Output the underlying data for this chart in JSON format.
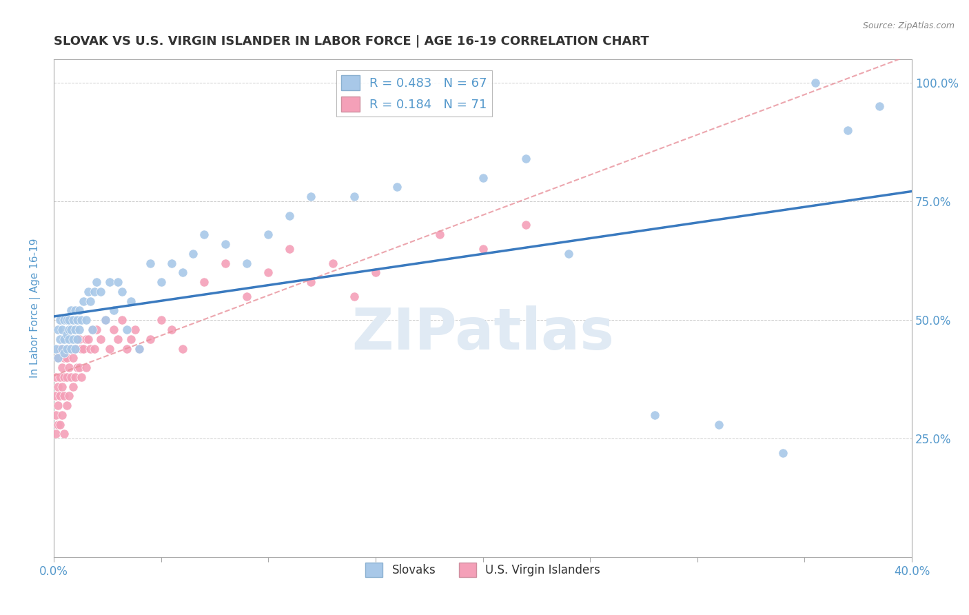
{
  "title": "SLOVAK VS U.S. VIRGIN ISLANDER IN LABOR FORCE | AGE 16-19 CORRELATION CHART",
  "source": "Source: ZipAtlas.com",
  "ylabel": "In Labor Force | Age 16-19",
  "xlim": [
    0.0,
    0.4
  ],
  "ylim": [
    0.0,
    1.05
  ],
  "x_ticks": [
    0.0,
    0.05,
    0.1,
    0.15,
    0.2,
    0.25,
    0.3,
    0.35,
    0.4
  ],
  "y_ticks": [
    0.0,
    0.25,
    0.5,
    0.75,
    1.0
  ],
  "legend_r1": "R = 0.483",
  "legend_n1": "N = 67",
  "legend_r2": "R = 0.184",
  "legend_n2": "N = 71",
  "blue_color": "#a8c8e8",
  "pink_color": "#f4a0b8",
  "line_blue": "#3a7abf",
  "line_pink": "#e8909a",
  "watermark": "ZIPatlas",
  "title_color": "#333333",
  "tick_label_color": "#5599cc",
  "slovaks_x": [
    0.001,
    0.002,
    0.002,
    0.003,
    0.003,
    0.004,
    0.004,
    0.005,
    0.005,
    0.005,
    0.006,
    0.006,
    0.006,
    0.007,
    0.007,
    0.007,
    0.008,
    0.008,
    0.008,
    0.009,
    0.009,
    0.01,
    0.01,
    0.01,
    0.011,
    0.011,
    0.012,
    0.012,
    0.013,
    0.014,
    0.015,
    0.016,
    0.017,
    0.018,
    0.019,
    0.02,
    0.022,
    0.024,
    0.026,
    0.028,
    0.03,
    0.032,
    0.034,
    0.036,
    0.04,
    0.045,
    0.05,
    0.055,
    0.06,
    0.065,
    0.07,
    0.08,
    0.09,
    0.1,
    0.11,
    0.12,
    0.14,
    0.16,
    0.2,
    0.22,
    0.24,
    0.28,
    0.31,
    0.34,
    0.355,
    0.37,
    0.385
  ],
  "slovaks_y": [
    0.44,
    0.48,
    0.42,
    0.46,
    0.5,
    0.44,
    0.48,
    0.46,
    0.5,
    0.43,
    0.47,
    0.5,
    0.44,
    0.46,
    0.5,
    0.48,
    0.44,
    0.48,
    0.52,
    0.46,
    0.5,
    0.44,
    0.48,
    0.52,
    0.46,
    0.5,
    0.48,
    0.52,
    0.5,
    0.54,
    0.5,
    0.56,
    0.54,
    0.48,
    0.56,
    0.58,
    0.56,
    0.5,
    0.58,
    0.52,
    0.58,
    0.56,
    0.48,
    0.54,
    0.44,
    0.62,
    0.58,
    0.62,
    0.6,
    0.64,
    0.68,
    0.66,
    0.62,
    0.68,
    0.72,
    0.76,
    0.76,
    0.78,
    0.8,
    0.84,
    0.64,
    0.3,
    0.28,
    0.22,
    1.0,
    0.9,
    0.95
  ],
  "vi_x": [
    0.001,
    0.001,
    0.001,
    0.001,
    0.002,
    0.002,
    0.002,
    0.002,
    0.003,
    0.003,
    0.003,
    0.003,
    0.004,
    0.004,
    0.004,
    0.005,
    0.005,
    0.005,
    0.005,
    0.006,
    0.006,
    0.006,
    0.007,
    0.007,
    0.007,
    0.008,
    0.008,
    0.009,
    0.009,
    0.01,
    0.01,
    0.011,
    0.011,
    0.012,
    0.012,
    0.013,
    0.013,
    0.014,
    0.015,
    0.015,
    0.016,
    0.017,
    0.018,
    0.019,
    0.02,
    0.022,
    0.024,
    0.026,
    0.028,
    0.03,
    0.032,
    0.034,
    0.036,
    0.038,
    0.04,
    0.045,
    0.05,
    0.055,
    0.06,
    0.07,
    0.08,
    0.09,
    0.1,
    0.11,
    0.12,
    0.13,
    0.14,
    0.15,
    0.18,
    0.2,
    0.22
  ],
  "vi_y": [
    0.38,
    0.34,
    0.3,
    0.26,
    0.42,
    0.36,
    0.32,
    0.28,
    0.44,
    0.38,
    0.34,
    0.28,
    0.4,
    0.36,
    0.3,
    0.42,
    0.38,
    0.34,
    0.26,
    0.42,
    0.38,
    0.32,
    0.44,
    0.4,
    0.34,
    0.44,
    0.38,
    0.42,
    0.36,
    0.44,
    0.38,
    0.46,
    0.4,
    0.46,
    0.4,
    0.44,
    0.38,
    0.44,
    0.46,
    0.4,
    0.46,
    0.44,
    0.48,
    0.44,
    0.48,
    0.46,
    0.5,
    0.44,
    0.48,
    0.46,
    0.5,
    0.44,
    0.46,
    0.48,
    0.44,
    0.46,
    0.5,
    0.48,
    0.44,
    0.58,
    0.62,
    0.55,
    0.6,
    0.65,
    0.58,
    0.62,
    0.55,
    0.6,
    0.68,
    0.65,
    0.7
  ]
}
